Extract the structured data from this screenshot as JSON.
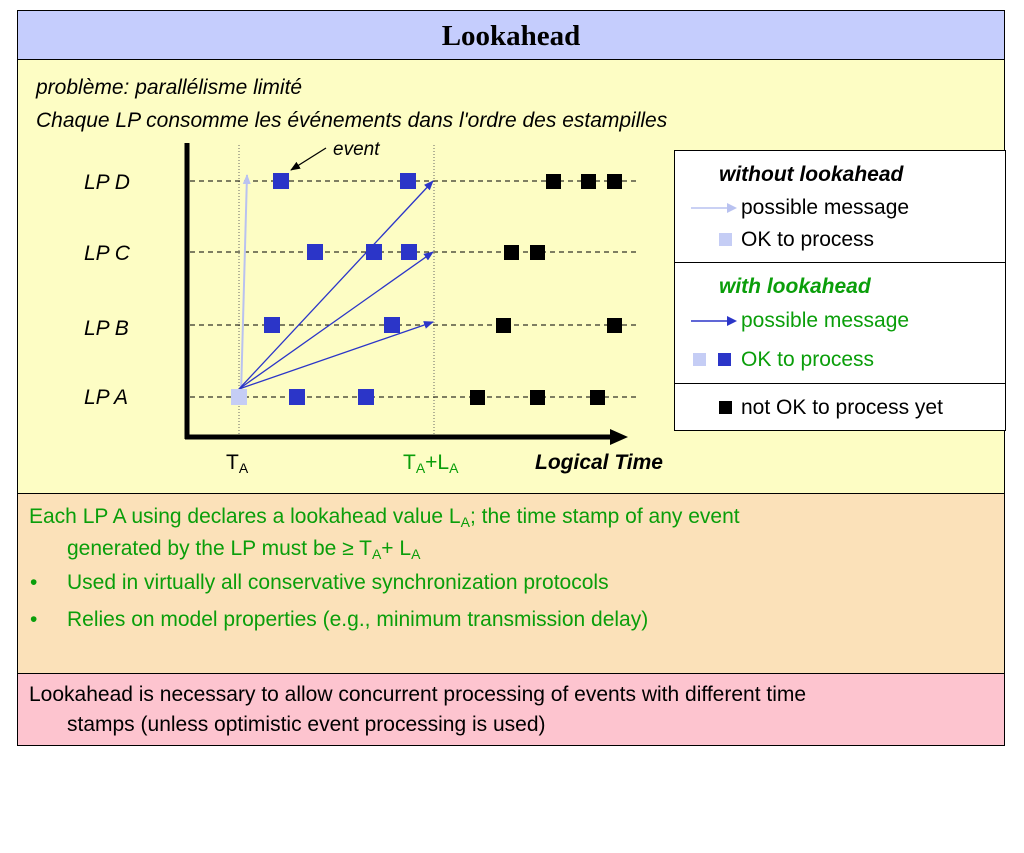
{
  "title": "Lookahead",
  "subtitle_line1": "problème: parallélisme limité",
  "subtitle_line2": "Chaque LP consomme les événements dans l'ordre des estampilles",
  "diagram": {
    "event_label": "event",
    "lp_labels": [
      "LP D",
      "LP C",
      "LP B",
      "LP A"
    ],
    "tick_ta": {
      "main": "T",
      "sub": "A"
    },
    "tick_tala": {
      "main1": "T",
      "sub1": "A",
      "plus": "+L",
      "sub2": "A"
    },
    "axis_label": "Logical Time",
    "colors": {
      "blue": "#2b35c8",
      "light": "#c5cdf5",
      "black": "#000000",
      "green": "#0a9e0a"
    }
  },
  "legend": {
    "without_title": "without lookahead",
    "without_message": "possible message",
    "without_ok": "OK to process",
    "with_title": "with lookahead",
    "with_message": "possible message",
    "with_ok": "OK to process",
    "not_ok": "not OK to process yet"
  },
  "notes": {
    "line1a": "Each LP A using declares a lookahead value L",
    "line1a_sub": "A",
    "line1b": "; the time stamp of any event",
    "line2a": "generated by the LP must be ≥ T",
    "line2a_sub": "A",
    "line2b": "+ L",
    "line2b_sub": "A",
    "bullets": [
      "Used in virtually all conservative synchronization protocols",
      "Relies on model properties (e.g., minimum transmission delay)"
    ],
    "bullet_symbol": "•"
  },
  "conclusion": {
    "line1": "Lookahead is necessary to allow concurrent processing of events with different time",
    "line2": "stamps (unless optimistic event processing is used)"
  }
}
